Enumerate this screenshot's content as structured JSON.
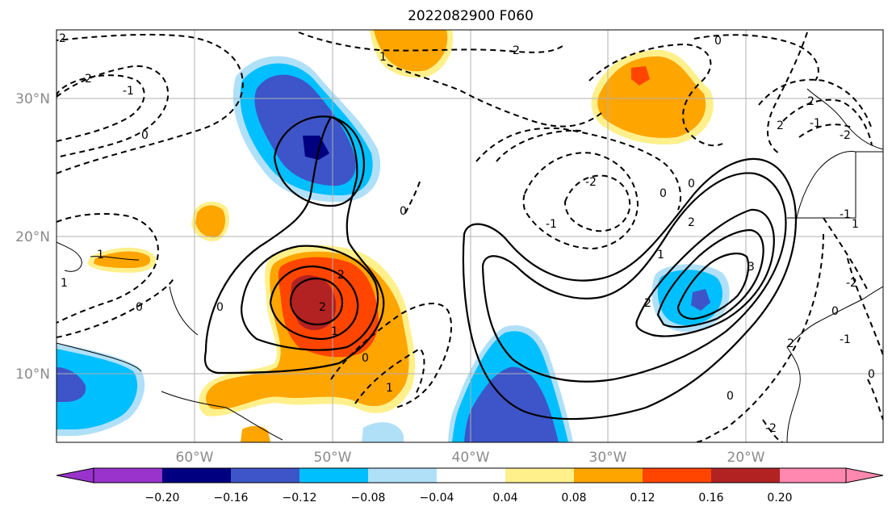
{
  "title": "2022082900 F060",
  "lat_labels": [
    "30°N",
    "20°N",
    "10°N"
  ],
  "lon_labels": [
    "60°W",
    "50°W",
    "40°W",
    "30°W",
    "20°W"
  ],
  "colorbar": {
    "ticks": [
      "−0.20",
      "−0.16",
      "−0.12",
      "−0.08",
      "−0.04",
      "0.04",
      "0.08",
      "0.12",
      "0.16",
      "0.20"
    ],
    "colors": [
      "#9933cc",
      "#000080",
      "#3d55c8",
      "#00bfff",
      "#b0e0f8",
      "#ffffff",
      "#fff08c",
      "#ffa500",
      "#ff4500",
      "#b22222",
      "#ff88b0"
    ]
  },
  "contour_labels": [
    "2",
    "-2",
    "-1",
    "-2",
    "0",
    "0",
    "-2",
    "0",
    "2",
    "-1",
    "1",
    "0",
    "0",
    "0",
    "-2",
    "-1",
    "0",
    "2",
    "1",
    "2",
    "3",
    "2",
    "2",
    "1",
    "1",
    "1",
    "-1",
    "0",
    "0",
    "-1",
    "-2",
    "2",
    "-2",
    "0",
    "1",
    "0",
    "2",
    "1"
  ],
  "colors": {
    "purple": "#9933cc",
    "navy": "#000080",
    "royal_blue": "#3d55c8",
    "deep_sky_blue": "#00bfff",
    "light_blue": "#b0e0f8",
    "light_yellow": "#fff08c",
    "orange": "#ffa500",
    "orange_red": "#ff4500",
    "dark_red": "#b22222",
    "pink": "#ff88b0"
  }
}
